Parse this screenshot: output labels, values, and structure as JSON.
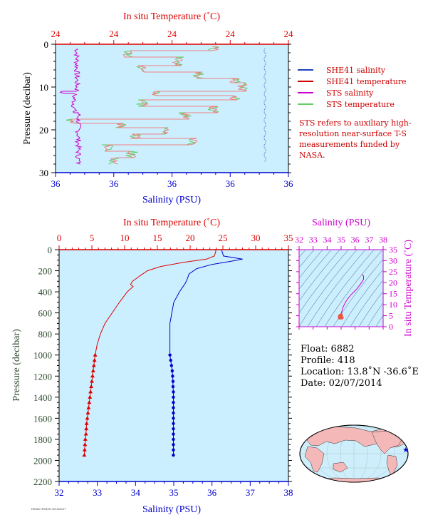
{
  "chart_data": [
    {
      "id": "near-surface",
      "type": "line",
      "top_axis_label": "In situ Temperature (˚C)",
      "top_ticks": [
        "24",
        "24",
        "24",
        "24",
        "24"
      ],
      "bottom_axis_label": "Salinity (PSU)",
      "bottom_ticks": [
        "36",
        "36",
        "36",
        "36",
        "36"
      ],
      "ylabel": "Pressure (decibar)",
      "y_ticks": [
        "0",
        "10",
        "20",
        "30"
      ],
      "ylim": [
        0,
        30
      ],
      "series": [
        {
          "name": "SHE41 salinity",
          "color": "#1f3fbf"
        },
        {
          "name": "SHE41 temperature",
          "color": "#cc0000"
        },
        {
          "name": "STS salinity",
          "color": "#cc00cc"
        },
        {
          "name": "STS temperature",
          "color": "#66cc66"
        }
      ]
    },
    {
      "id": "profile",
      "type": "line",
      "top_axis_label": "In situ Temperature (˚C)",
      "top_ticks": [
        0,
        5,
        10,
        15,
        20,
        25,
        30,
        35
      ],
      "xlim_temperature": [
        0,
        35
      ],
      "bottom_axis_label": "Salinity (PSU)",
      "bottom_ticks": [
        32,
        33,
        34,
        35,
        36,
        37,
        38
      ],
      "xlim_salinity": [
        32,
        38
      ],
      "ylabel": "Pressure (decibar)",
      "y_ticks": [
        0,
        200,
        400,
        600,
        800,
        1000,
        1200,
        1400,
        1600,
        1800,
        2000,
        2200
      ],
      "ylim": [
        0,
        2200
      ],
      "temperature": [
        {
          "p": 0,
          "v": 23.9
        },
        {
          "p": 20,
          "v": 23.9
        },
        {
          "p": 60,
          "v": 23.7
        },
        {
          "p": 90,
          "v": 22.5
        },
        {
          "p": 120,
          "v": 19.0
        },
        {
          "p": 160,
          "v": 15.5
        },
        {
          "p": 200,
          "v": 13.5
        },
        {
          "p": 250,
          "v": 12.3
        },
        {
          "p": 300,
          "v": 11.2
        },
        {
          "p": 330,
          "v": 10.9
        },
        {
          "p": 350,
          "v": 11.3
        },
        {
          "p": 400,
          "v": 10.4
        },
        {
          "p": 500,
          "v": 9.2
        },
        {
          "p": 600,
          "v": 8.1
        },
        {
          "p": 700,
          "v": 7.0
        },
        {
          "p": 800,
          "v": 6.3
        },
        {
          "p": 900,
          "v": 5.8
        },
        {
          "p": 1000,
          "v": 5.5
        }
      ],
      "temperature_samples": [
        {
          "p": 1000,
          "v": 5.5
        },
        {
          "p": 1050,
          "v": 5.4
        },
        {
          "p": 1100,
          "v": 5.3
        },
        {
          "p": 1150,
          "v": 5.2
        },
        {
          "p": 1200,
          "v": 5.1
        },
        {
          "p": 1250,
          "v": 5.0
        },
        {
          "p": 1300,
          "v": 4.9
        },
        {
          "p": 1350,
          "v": 4.8
        },
        {
          "p": 1400,
          "v": 4.7
        },
        {
          "p": 1450,
          "v": 4.6
        },
        {
          "p": 1500,
          "v": 4.5
        },
        {
          "p": 1550,
          "v": 4.4
        },
        {
          "p": 1600,
          "v": 4.3
        },
        {
          "p": 1650,
          "v": 4.2
        },
        {
          "p": 1700,
          "v": 4.15
        },
        {
          "p": 1750,
          "v": 4.1
        },
        {
          "p": 1800,
          "v": 4.0
        },
        {
          "p": 1850,
          "v": 3.95
        },
        {
          "p": 1900,
          "v": 3.9
        },
        {
          "p": 1950,
          "v": 3.85
        }
      ],
      "salinity": [
        {
          "p": 0,
          "v": 36.25
        },
        {
          "p": 60,
          "v": 36.3
        },
        {
          "p": 90,
          "v": 36.8
        },
        {
          "p": 110,
          "v": 36.5
        },
        {
          "p": 140,
          "v": 36.0
        },
        {
          "p": 180,
          "v": 35.6
        },
        {
          "p": 230,
          "v": 35.4
        },
        {
          "p": 280,
          "v": 35.35
        },
        {
          "p": 320,
          "v": 35.3
        },
        {
          "p": 400,
          "v": 35.15
        },
        {
          "p": 500,
          "v": 35.0
        },
        {
          "p": 600,
          "v": 34.95
        },
        {
          "p": 700,
          "v": 34.9
        },
        {
          "p": 800,
          "v": 34.9
        },
        {
          "p": 900,
          "v": 34.9
        },
        {
          "p": 1000,
          "v": 34.9
        }
      ],
      "salinity_samples": [
        {
          "p": 1000,
          "v": 34.9
        },
        {
          "p": 1050,
          "v": 34.92
        },
        {
          "p": 1100,
          "v": 34.94
        },
        {
          "p": 1150,
          "v": 34.96
        },
        {
          "p": 1200,
          "v": 34.97
        },
        {
          "p": 1250,
          "v": 34.98
        },
        {
          "p": 1300,
          "v": 34.98
        },
        {
          "p": 1350,
          "v": 34.99
        },
        {
          "p": 1400,
          "v": 34.99
        },
        {
          "p": 1450,
          "v": 34.99
        },
        {
          "p": 1500,
          "v": 34.99
        },
        {
          "p": 1550,
          "v": 34.99
        },
        {
          "p": 1600,
          "v": 34.99
        },
        {
          "p": 1650,
          "v": 34.99
        },
        {
          "p": 1700,
          "v": 34.99
        },
        {
          "p": 1750,
          "v": 34.99
        },
        {
          "p": 1800,
          "v": 34.99
        },
        {
          "p": 1850,
          "v": 34.99
        },
        {
          "p": 1900,
          "v": 34.99
        },
        {
          "p": 1950,
          "v": 34.99
        }
      ]
    },
    {
      "id": "ts-diagram",
      "type": "scatter",
      "top_axis_label": "Salinity (PSU)",
      "x_ticks": [
        32,
        33,
        34,
        35,
        36,
        37,
        38
      ],
      "xlim": [
        32,
        38
      ],
      "right_axis_label": "In situ Temperature (˚C)",
      "y_ticks": [
        0,
        5,
        10,
        15,
        20,
        25,
        30,
        35
      ],
      "ylim": [
        0,
        35
      ],
      "curve": [
        {
          "s": 35.0,
          "t": 5.5
        },
        {
          "s": 35.05,
          "t": 7.0
        },
        {
          "s": 35.15,
          "t": 9.0
        },
        {
          "s": 35.3,
          "t": 11.0
        },
        {
          "s": 35.45,
          "t": 12.5
        },
        {
          "s": 35.7,
          "t": 14.5
        },
        {
          "s": 36.1,
          "t": 17.0
        },
        {
          "s": 36.4,
          "t": 19.5
        },
        {
          "s": 36.6,
          "t": 21.5
        },
        {
          "s": 36.6,
          "t": 23.0
        },
        {
          "s": 36.5,
          "t": 23.8
        }
      ],
      "cluster": [
        {
          "s": 34.9,
          "t": 4.0
        },
        {
          "s": 34.95,
          "t": 4.3
        },
        {
          "s": 35.0,
          "t": 4.6
        },
        {
          "s": 34.95,
          "t": 5.0
        },
        {
          "s": 35.0,
          "t": 5.3
        },
        {
          "s": 34.9,
          "t": 4.8
        },
        {
          "s": 35.05,
          "t": 4.1
        }
      ]
    }
  ],
  "colors": {
    "panel_bg": "#ccefff",
    "temperature": "#dd0000",
    "salinity": "#0000cc",
    "sts_salinity": "#cc00cc",
    "sts_temperature": "#66cc66",
    "axis_pressure": "#2d4a2d",
    "ts_axis": "#cc00cc"
  },
  "legend": {
    "items": [
      {
        "label": "SHE41 salinity",
        "color": "#1f3fbf"
      },
      {
        "label": "SHE41 temperature",
        "color": "#cc0000"
      },
      {
        "label": "STS salinity",
        "color": "#cc00cc"
      },
      {
        "label": "STS temperature",
        "color": "#66cc66"
      }
    ]
  },
  "note": "STS refers to auxiliary high-resolution near-surface T-S measurements funded by NASA.",
  "float_info": {
    "float": "Float:  6882",
    "profile": "Profile:  418",
    "location": "Location:  13.8˚N  -36.6˚E",
    "date": "Date:  02/07/2014"
  },
  "map": {
    "marker_lat": 13.8,
    "marker_lon": -36.6,
    "icon": "star-icon"
  },
  "footer_text": "F6882 P0418 20140207"
}
